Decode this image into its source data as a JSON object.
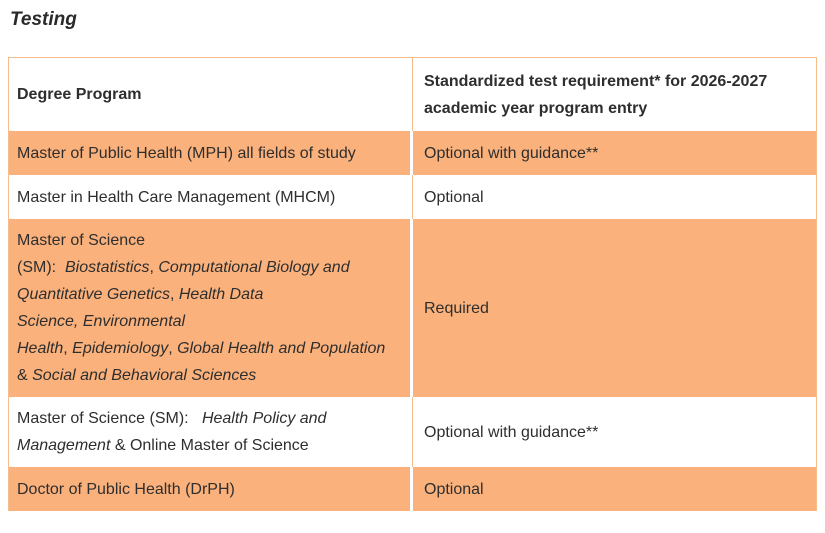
{
  "page": {
    "title": "Testing"
  },
  "colors": {
    "row_highlight_orange": "#FAB17C",
    "table_border": "#F5BD8B",
    "row_alt_white": "#FFFFFF",
    "text": "#2E2E2E"
  },
  "table": {
    "header": {
      "col1": "Degree Program",
      "col2_lines": [
        "Standardized test requirement* for 2026-2027",
        "academic year program entry"
      ]
    },
    "rows": [
      {
        "bg": "orange",
        "program_lines": [
          [
            {
              "text": "Master of Public Health (MPH) all fields of study"
            }
          ]
        ],
        "requirement": "Optional with guidance**"
      },
      {
        "bg": "white",
        "program_lines": [
          [
            {
              "text": "Master in Health Care Management (MHCM)"
            }
          ]
        ],
        "requirement": "Optional"
      },
      {
        "bg": "orange",
        "program_lines": [
          [
            {
              "text": "Master of Science"
            }
          ],
          [
            {
              "text": "(SM):  "
            },
            {
              "text": "Biostatistics",
              "italic": true
            },
            {
              "text": ", "
            },
            {
              "text": "Computational Biology and",
              "italic": true
            }
          ],
          [
            {
              "text": "Quantitative Genetics",
              "italic": true
            },
            {
              "text": ", "
            },
            {
              "text": "Health Data",
              "italic": true
            }
          ],
          [
            {
              "text": "Science, Environmental",
              "italic": true
            }
          ],
          [
            {
              "text": "Health",
              "italic": true
            },
            {
              "text": ", "
            },
            {
              "text": "Epidemiology",
              "italic": true
            },
            {
              "text": ", "
            },
            {
              "text": "Global Health and Population",
              "italic": true
            }
          ],
          [
            {
              "text": "& "
            },
            {
              "text": "Social and Behavioral Sciences",
              "italic": true
            }
          ]
        ],
        "requirement": "Required"
      },
      {
        "bg": "white",
        "program_lines": [
          [
            {
              "text": "Master of Science (SM):   "
            },
            {
              "text": "Health Policy and",
              "italic": true
            }
          ],
          [
            {
              "text": "Management",
              "italic": true
            },
            {
              "text": " & Online Master of Science"
            }
          ]
        ],
        "requirement": "Optional with guidance**"
      },
      {
        "bg": "orange",
        "program_lines": [
          [
            {
              "text": "Doctor of Public Health (DrPH)"
            }
          ]
        ],
        "requirement": "Optional"
      }
    ]
  }
}
